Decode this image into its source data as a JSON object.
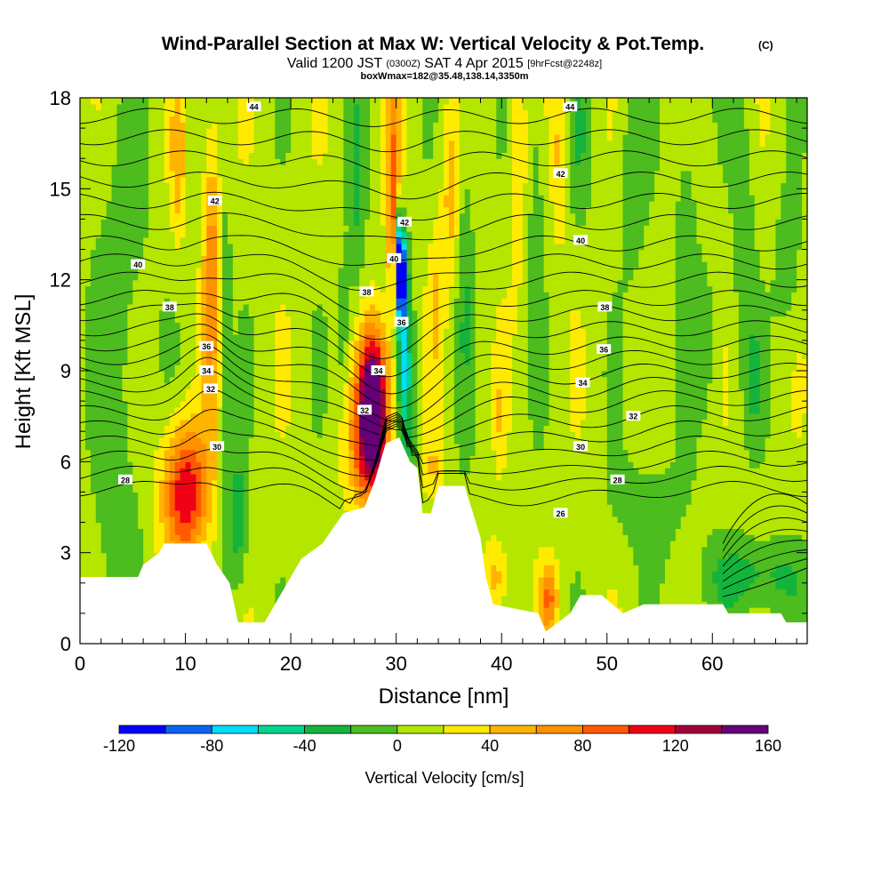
{
  "chart_data": {
    "type": "heatmap",
    "title": "Wind-Parallel Section at Max W: Vertical Velocity & Pot.Temp.",
    "title_suffix": "(C)",
    "subtitle_valid": "Valid 1200 JST",
    "subtitle_zulu": "(0300Z)",
    "subtitle_date": "SAT 4 Apr 2015",
    "subtitle_fcst": "[9hrFcst@2248z]",
    "subtitle_box": "boxWmax=182@35.48,138.14,3350m",
    "xlabel": "Distance [nm]",
    "ylabel": "Height [Kft MSL]",
    "xlim": [
      0,
      69
    ],
    "ylim": [
      0,
      18
    ],
    "x_ticks": [
      "0",
      "10",
      "20",
      "30",
      "40",
      "50",
      "60"
    ],
    "y_ticks": [
      "0",
      "3",
      "6",
      "9",
      "12",
      "15",
      "18"
    ],
    "colorbar": {
      "label": "Vertical Velocity [cm/s]",
      "ticks": [
        "-120",
        "-80",
        "-40",
        "0",
        "40",
        "80",
        "120",
        "160"
      ],
      "bins": [
        -120,
        -100,
        -80,
        -60,
        -40,
        -20,
        0,
        20,
        40,
        60,
        80,
        100,
        120,
        140,
        160
      ],
      "colors": [
        "#0000ff",
        "#0a64f0",
        "#00ddff",
        "#00d68f",
        "#14b43c",
        "#4cbc1e",
        "#b4e600",
        "#ffeb00",
        "#ffb400",
        "#ff9100",
        "#ff5a00",
        "#f00014",
        "#a0003c",
        "#640078"
      ]
    },
    "background_w": 10,
    "w_features": [
      {
        "x": 10,
        "z": 5,
        "sx": 1.5,
        "sz": 1.6,
        "w": 110
      },
      {
        "x": 12.5,
        "z": 12.5,
        "sx": 0.6,
        "sz": 3.5,
        "w": 60
      },
      {
        "x": 9.3,
        "z": 16,
        "sx": 0.5,
        "sz": 2,
        "w": 40
      },
      {
        "x": 13.8,
        "z": 9,
        "sx": 0.4,
        "sz": 4.5,
        "w": -30
      },
      {
        "x": 15,
        "z": 4,
        "sx": 0.6,
        "sz": 1.6,
        "w": -45
      },
      {
        "x": 27.8,
        "z": 8,
        "sx": 1.0,
        "sz": 1.7,
        "w": 165
      },
      {
        "x": 27.5,
        "z": 6.3,
        "sx": 1.5,
        "sz": 1.5,
        "w": 60
      },
      {
        "x": 29.8,
        "z": 14.5,
        "sx": 0.5,
        "sz": 2.8,
        "w": 80
      },
      {
        "x": 30.4,
        "z": 12.2,
        "sx": 0.35,
        "sz": 0.9,
        "w": -130
      },
      {
        "x": 30.3,
        "z": 13.5,
        "sx": 0.25,
        "sz": 1.1,
        "w": -80
      },
      {
        "x": 30.6,
        "z": 10.2,
        "sx": 0.45,
        "sz": 2.2,
        "w": -60
      },
      {
        "x": 31.2,
        "z": 8,
        "sx": 0.6,
        "sz": 2.5,
        "w": -35
      },
      {
        "x": 26.3,
        "z": 14.5,
        "sx": 0.6,
        "sz": 3.0,
        "w": -30
      },
      {
        "x": 25,
        "z": 10.5,
        "sx": 0.5,
        "sz": 1.6,
        "w": -25
      },
      {
        "x": 35.2,
        "z": 14.8,
        "sx": 0.6,
        "sz": 2.2,
        "w": 40
      },
      {
        "x": 33.8,
        "z": 11.2,
        "sx": 0.5,
        "sz": 2.0,
        "w": 28
      },
      {
        "x": 41.5,
        "z": 15.5,
        "sx": 0.5,
        "sz": 2.5,
        "w": 32
      },
      {
        "x": 45.5,
        "z": 16.2,
        "sx": 0.5,
        "sz": 2.0,
        "w": 34
      },
      {
        "x": 39.8,
        "z": 7.5,
        "sx": 0.35,
        "sz": 1.3,
        "w": 22
      },
      {
        "x": 36.5,
        "z": 12.5,
        "sx": 0.6,
        "sz": 4.0,
        "w": -25
      },
      {
        "x": 43.3,
        "z": 14.5,
        "sx": 0.5,
        "sz": 3.5,
        "w": -25
      },
      {
        "x": 47.5,
        "z": 16.5,
        "sx": 0.8,
        "sz": 2.0,
        "w": -22
      },
      {
        "x": 52.5,
        "z": 15.5,
        "sx": 1.0,
        "sz": 2.5,
        "w": -25
      },
      {
        "x": 57.5,
        "z": 14.5,
        "sx": 0.8,
        "sz": 3.0,
        "w": -22
      },
      {
        "x": 63,
        "z": 13.5,
        "sx": 0.8,
        "sz": 3.5,
        "w": -25
      },
      {
        "x": 67.2,
        "z": 12.5,
        "sx": 0.9,
        "sz": 1.8,
        "w": -25
      },
      {
        "x": 53.5,
        "z": 9.3,
        "sx": 0.6,
        "sz": 1.2,
        "w": -20
      },
      {
        "x": 59.5,
        "z": 10,
        "sx": 0.8,
        "sz": 2.0,
        "w": -20
      },
      {
        "x": 64,
        "z": 8.5,
        "sx": 0.6,
        "sz": 1.5,
        "w": -22
      },
      {
        "x": 54,
        "z": 4.5,
        "sx": 3.0,
        "sz": 1.3,
        "w": -20
      },
      {
        "x": 64,
        "z": 2.2,
        "sx": 3.5,
        "sz": 0.9,
        "w": -40
      },
      {
        "x": 3.5,
        "z": 3.5,
        "sx": 1.5,
        "sz": 3.0,
        "w": -22
      },
      {
        "x": 4,
        "z": 12,
        "sx": 2.0,
        "sz": 4.0,
        "w": -20
      },
      {
        "x": 39.5,
        "z": 2.2,
        "sx": 0.8,
        "sz": 0.9,
        "w": 42
      },
      {
        "x": 44.5,
        "z": 1.5,
        "sx": 0.6,
        "sz": 0.8,
        "w": 70
      },
      {
        "x": 33.5,
        "z": 5.8,
        "sx": 0.7,
        "sz": 0.6,
        "w": 30
      }
    ],
    "terrain": [
      {
        "x": 0,
        "z": 2.2
      },
      {
        "x": 5.5,
        "z": 2.2
      },
      {
        "x": 6,
        "z": 2.6
      },
      {
        "x": 7.5,
        "z": 3.0
      },
      {
        "x": 8,
        "z": 3.3
      },
      {
        "x": 12,
        "z": 3.3
      },
      {
        "x": 13,
        "z": 2.6
      },
      {
        "x": 14.2,
        "z": 2.0
      },
      {
        "x": 15,
        "z": 0.7
      },
      {
        "x": 17.5,
        "z": 0.7
      },
      {
        "x": 18.5,
        "z": 1.3
      },
      {
        "x": 20,
        "z": 2.2
      },
      {
        "x": 21,
        "z": 2.8
      },
      {
        "x": 23,
        "z": 3.3
      },
      {
        "x": 24,
        "z": 3.8
      },
      {
        "x": 25,
        "z": 4.3
      },
      {
        "x": 27,
        "z": 4.5
      },
      {
        "x": 28,
        "z": 5.4
      },
      {
        "x": 29,
        "z": 6.6
      },
      {
        "x": 30.3,
        "z": 6.8
      },
      {
        "x": 31.3,
        "z": 6.0
      },
      {
        "x": 32,
        "z": 5.8
      },
      {
        "x": 32.5,
        "z": 4.3
      },
      {
        "x": 33.3,
        "z": 4.3
      },
      {
        "x": 34,
        "z": 5.2
      },
      {
        "x": 36.5,
        "z": 5.2
      },
      {
        "x": 38,
        "z": 3.5
      },
      {
        "x": 38.5,
        "z": 2.2
      },
      {
        "x": 39.2,
        "z": 1.3
      },
      {
        "x": 43.5,
        "z": 1.0
      },
      {
        "x": 44.2,
        "z": 0.4
      },
      {
        "x": 46.5,
        "z": 1.0
      },
      {
        "x": 47.5,
        "z": 1.6
      },
      {
        "x": 49.5,
        "z": 1.6
      },
      {
        "x": 51.5,
        "z": 1.0
      },
      {
        "x": 53.5,
        "z": 1.3
      },
      {
        "x": 61,
        "z": 1.3
      },
      {
        "x": 61.5,
        "z": 1.0
      },
      {
        "x": 66.5,
        "z": 1.0
      },
      {
        "x": 67,
        "z": 0.7
      },
      {
        "x": 69,
        "z": 0.7
      }
    ],
    "isentropes": [
      {
        "theta": 26,
        "base": 5.1
      },
      {
        "theta": 27,
        "base": 5.6
      },
      {
        "theta": 28,
        "base": 6.1
      },
      {
        "theta": 29,
        "base": 6.6
      },
      {
        "theta": 30,
        "base": 7.1
      },
      {
        "theta": 31,
        "base": 7.6
      },
      {
        "theta": 32,
        "base": 8.1
      },
      {
        "theta": 33,
        "base": 8.55
      },
      {
        "theta": 34,
        "base": 9.0
      },
      {
        "theta": 35,
        "base": 9.45
      },
      {
        "theta": 36,
        "base": 9.9
      },
      {
        "theta": 37,
        "base": 10.4
      },
      {
        "theta": 38,
        "base": 10.9
      },
      {
        "theta": 39,
        "base": 11.4
      },
      {
        "theta": 40,
        "base": 12.0
      },
      {
        "theta": 41,
        "base": 12.6
      },
      {
        "theta": 42,
        "base": 13.2
      },
      {
        "theta": 43,
        "base": 13.9
      },
      {
        "theta": 44,
        "base": 14.6
      },
      {
        "theta": 45,
        "base": 15.3
      },
      {
        "theta": 46,
        "base": 16.0
      },
      {
        "theta": 47,
        "base": 16.7
      },
      {
        "theta": 48,
        "base": 17.4
      }
    ],
    "contour_labels": [
      {
        "text": "44",
        "x": 16.5,
        "z": 17.7
      },
      {
        "text": "44",
        "x": 46.5,
        "z": 17.7
      },
      {
        "text": "42",
        "x": 12.8,
        "z": 14.6
      },
      {
        "text": "42",
        "x": 30.8,
        "z": 13.9
      },
      {
        "text": "42",
        "x": 45.6,
        "z": 15.5
      },
      {
        "text": "40",
        "x": 5.5,
        "z": 12.5
      },
      {
        "text": "40",
        "x": 29.8,
        "z": 12.7
      },
      {
        "text": "40",
        "x": 47.5,
        "z": 13.3
      },
      {
        "text": "38",
        "x": 8.5,
        "z": 11.1
      },
      {
        "text": "38",
        "x": 27.2,
        "z": 11.6
      },
      {
        "text": "38",
        "x": 49.8,
        "z": 11.1
      },
      {
        "text": "36",
        "x": 12,
        "z": 9.8
      },
      {
        "text": "36",
        "x": 30.5,
        "z": 10.6
      },
      {
        "text": "36",
        "x": 49.7,
        "z": 9.7
      },
      {
        "text": "34",
        "x": 12,
        "z": 9.0
      },
      {
        "text": "34",
        "x": 28.3,
        "z": 9.0
      },
      {
        "text": "34",
        "x": 47.7,
        "z": 8.6
      },
      {
        "text": "32",
        "x": 12.4,
        "z": 8.4
      },
      {
        "text": "32",
        "x": 27,
        "z": 7.7
      },
      {
        "text": "32",
        "x": 52.5,
        "z": 7.5
      },
      {
        "text": "30",
        "x": 13,
        "z": 6.5
      },
      {
        "text": "30",
        "x": 47.5,
        "z": 6.5
      },
      {
        "text": "28",
        "x": 4.3,
        "z": 5.4
      },
      {
        "text": "28",
        "x": 51,
        "z": 5.4
      },
      {
        "text": "26",
        "x": 45.6,
        "z": 4.3
      }
    ]
  }
}
